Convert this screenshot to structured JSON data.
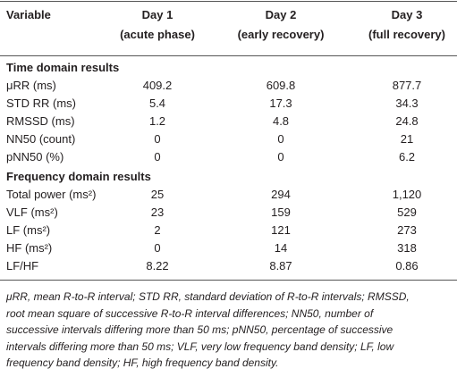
{
  "table": {
    "columns": [
      {
        "title": "Variable"
      },
      {
        "title": "Day 1",
        "subtitle": "(acute phase)"
      },
      {
        "title": "Day 2",
        "subtitle": "(early recovery)"
      },
      {
        "title": "Day 3",
        "subtitle": "(full recovery)"
      }
    ],
    "sections": [
      {
        "title": "Time domain results",
        "rows": [
          [
            "μRR (ms)",
            "409.2",
            "609.8",
            "877.7"
          ],
          [
            "STD RR (ms)",
            "5.4",
            "17.3",
            "34.3"
          ],
          [
            "RMSSD (ms)",
            "1.2",
            "4.8",
            "24.8"
          ],
          [
            "NN50 (count)",
            "0",
            "0",
            "21"
          ],
          [
            "pNN50 (%)",
            "0",
            "0",
            "6.2"
          ]
        ]
      },
      {
        "title": "Frequency domain results",
        "rows": [
          [
            "Total power (ms²)",
            "25",
            "294",
            "1,120"
          ],
          [
            "VLF (ms²)",
            "23",
            "159",
            "529"
          ],
          [
            "LF (ms²)",
            "2",
            "121",
            "273"
          ],
          [
            "HF (ms²)",
            "0",
            "14",
            "318"
          ],
          [
            "LF/HF",
            "8.22",
            "8.87",
            "0.86"
          ]
        ]
      }
    ]
  },
  "footnote_lines": [
    "μRR, mean R-to-R interval; STD RR, standard deviation of R-to-R intervals; RMSSD,",
    "root mean square of successive R-to-R interval differences; NN50, number of",
    "successive intervals differing more than 50 ms; pNN50, percentage of successive",
    "intervals differing more than 50 ms; VLF, very low frequency band density; LF, low",
    "frequency band density; HF, high frequency band density."
  ]
}
